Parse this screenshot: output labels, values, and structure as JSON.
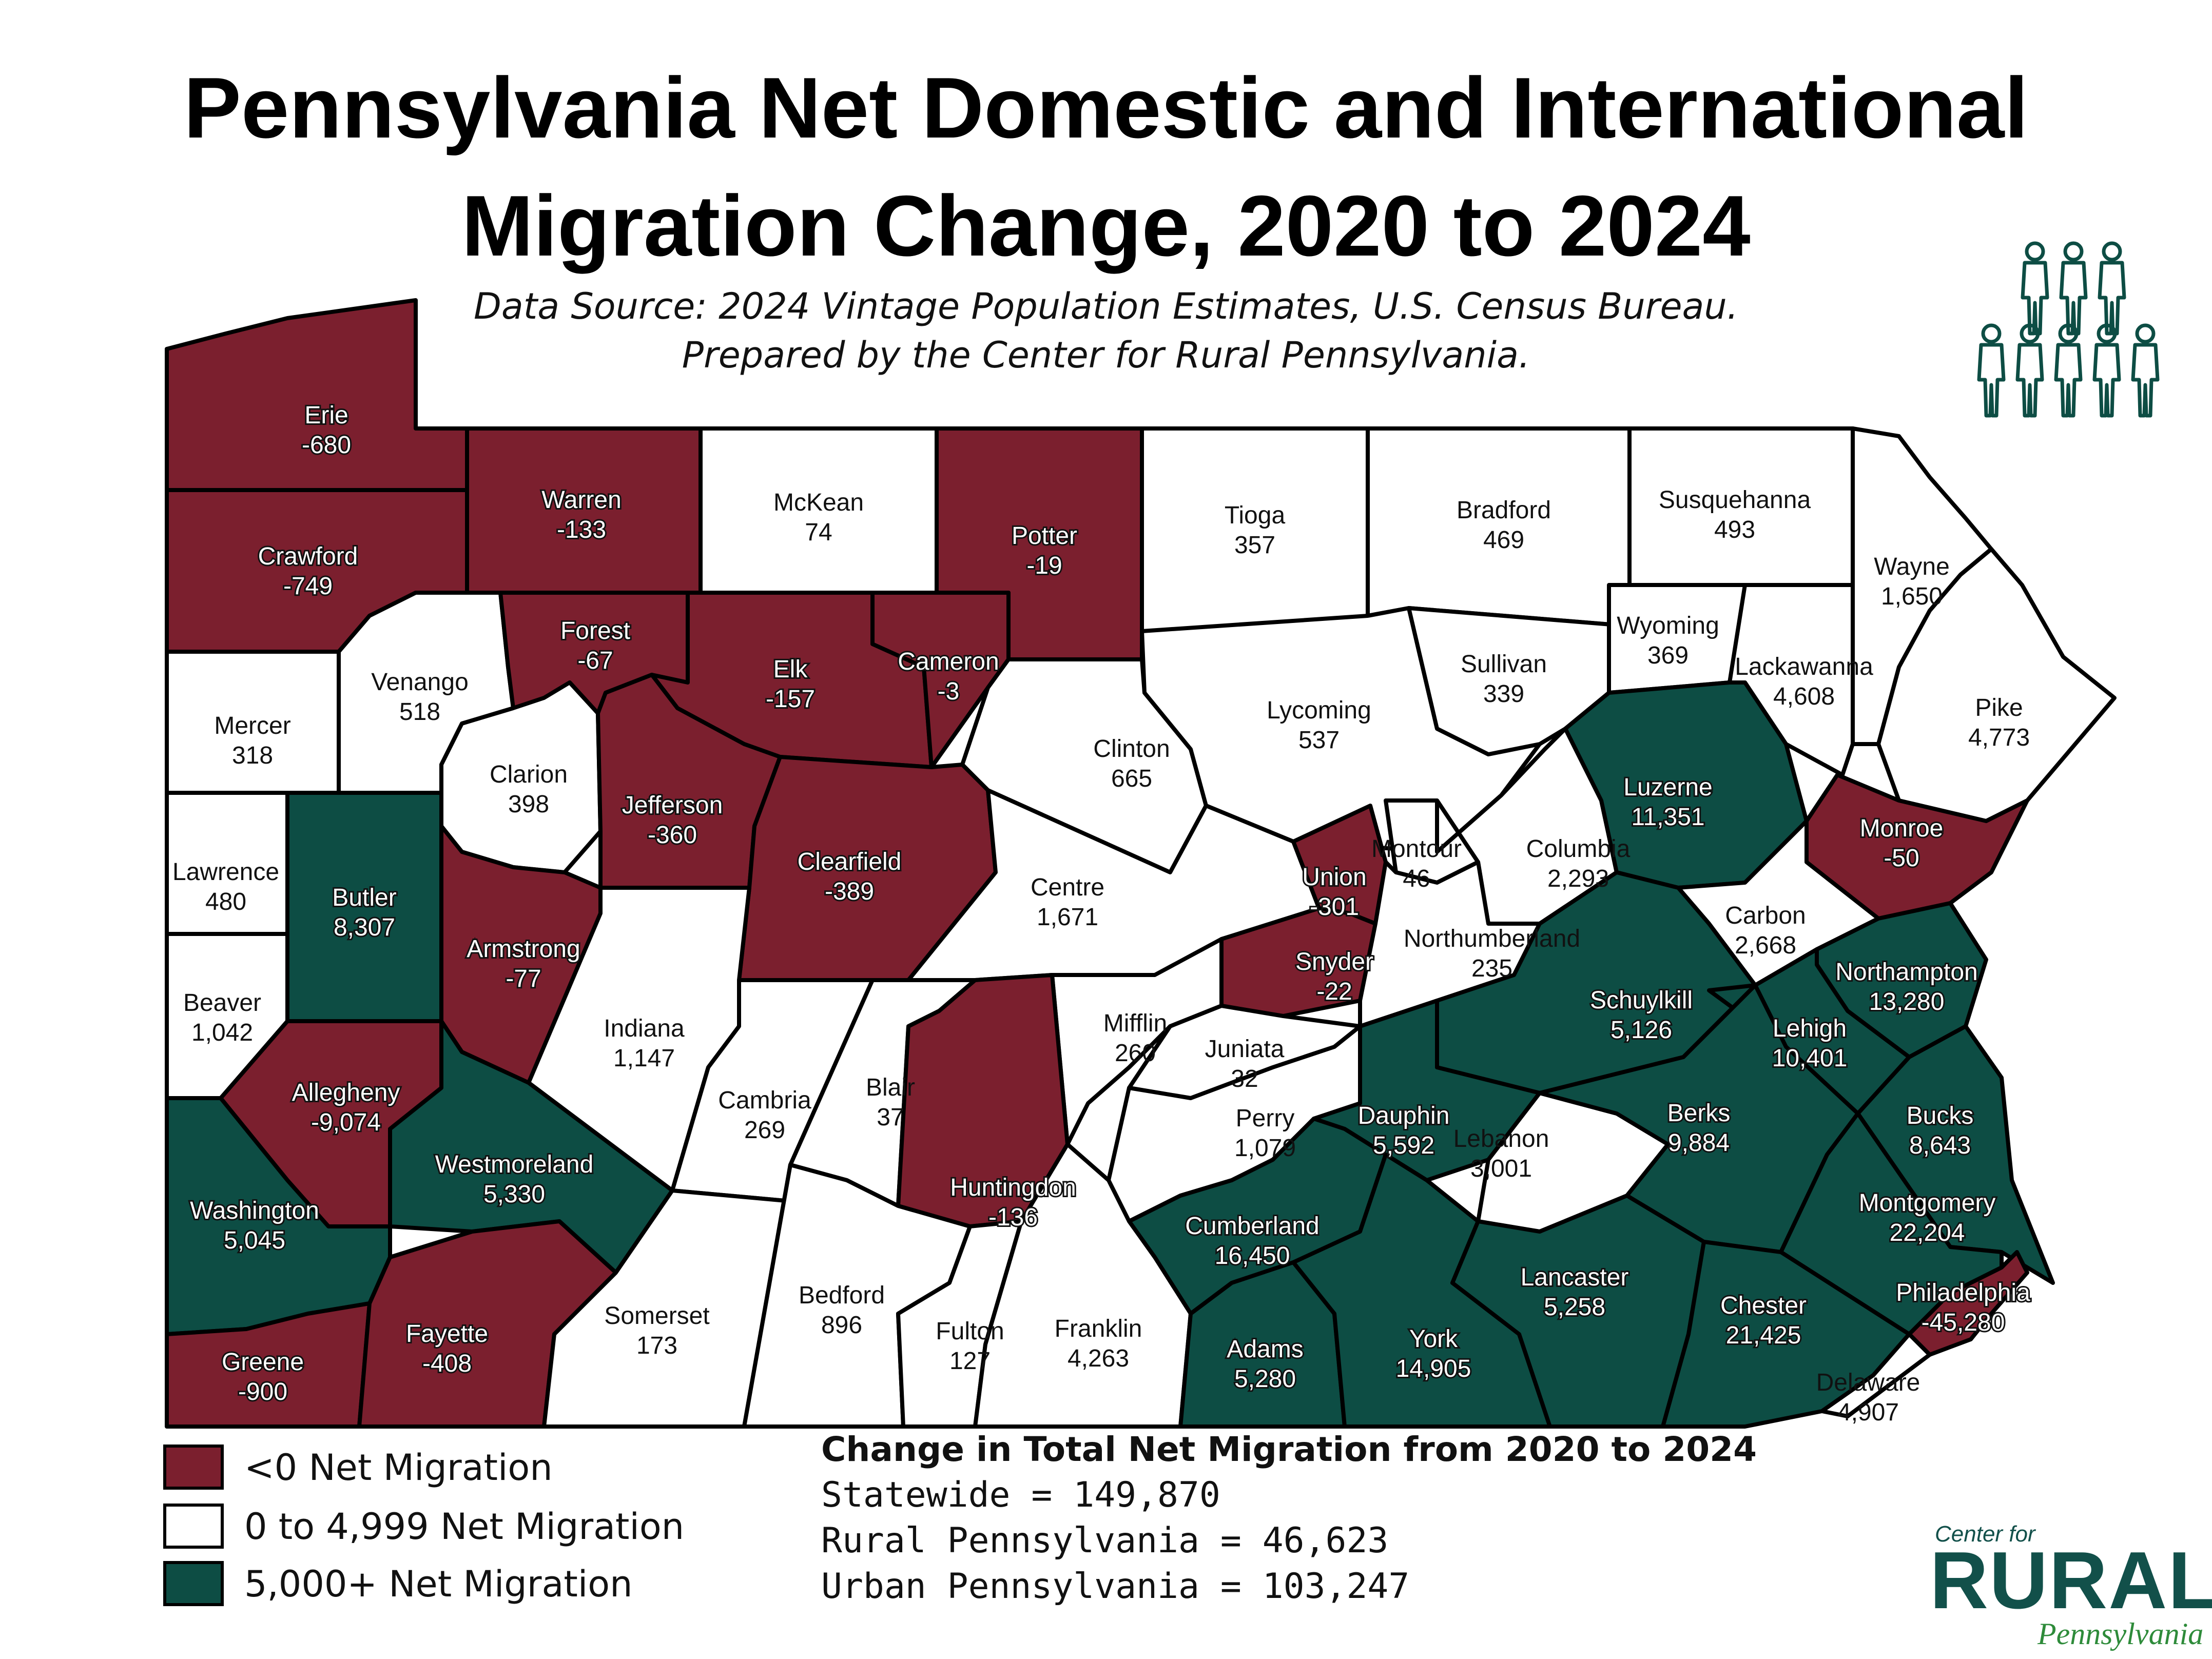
{
  "title_line1": "Pennsylvania Net Domestic and International",
  "title_line2": "Migration Change, 2020 to 2024",
  "source_line1": "Data Source: 2024 Vintage Population Estimates, U.S. Census Bureau.",
  "source_line2": "Prepared by the Center for Rural Pennsylvania.",
  "colors": {
    "negative": "#7b1f2e",
    "low": "#ffffff",
    "high": "#0d4d44",
    "border": "#000000",
    "people_icon": "#0d4d44"
  },
  "legend": [
    {
      "label": "<0 Net Migration",
      "color": "#7b1f2e"
    },
    {
      "label": "0 to 4,999 Net Migration",
      "color": "#ffffff"
    },
    {
      "label": "5,000+ Net Migration",
      "color": "#0d4d44"
    }
  ],
  "stats": {
    "heading": "Change in Total Net Migration from 2020 to 2024",
    "statewide": "Statewide = 149,870",
    "rural": "Rural Pennsylvania = 46,623",
    "urban": "Urban Pennsylvania = 103,247"
  },
  "logo": {
    "center_for": "Center for",
    "rural": "RURAL",
    "pennsylvania": "Pennsylvania"
  },
  "counties": [
    {
      "name": "Erie",
      "value": "-680",
      "category": "negative"
    },
    {
      "name": "Crawford",
      "value": "-749",
      "category": "negative"
    },
    {
      "name": "Warren",
      "value": "-133",
      "category": "negative"
    },
    {
      "name": "McKean",
      "value": "74",
      "category": "low"
    },
    {
      "name": "Potter",
      "value": "-19",
      "category": "negative"
    },
    {
      "name": "Tioga",
      "value": "357",
      "category": "low"
    },
    {
      "name": "Bradford",
      "value": "469",
      "category": "low"
    },
    {
      "name": "Susquehanna",
      "value": "493",
      "category": "low"
    },
    {
      "name": "Wayne",
      "value": "1,650",
      "category": "low"
    },
    {
      "name": "Mercer",
      "value": "318",
      "category": "low"
    },
    {
      "name": "Venango",
      "value": "518",
      "category": "low"
    },
    {
      "name": "Forest",
      "value": "-67",
      "category": "negative"
    },
    {
      "name": "Elk",
      "value": "-157",
      "category": "negative"
    },
    {
      "name": "Cameron",
      "value": "-3",
      "category": "negative"
    },
    {
      "name": "Clinton",
      "value": "665",
      "category": "low"
    },
    {
      "name": "Lycoming",
      "value": "537",
      "category": "low"
    },
    {
      "name": "Sullivan",
      "value": "339",
      "category": "low"
    },
    {
      "name": "Wyoming",
      "value": "369",
      "category": "low"
    },
    {
      "name": "Lackawanna",
      "value": "4,608",
      "category": "low"
    },
    {
      "name": "Pike",
      "value": "4,773",
      "category": "low"
    },
    {
      "name": "Lawrence",
      "value": "480",
      "category": "low"
    },
    {
      "name": "Butler",
      "value": "8,307",
      "category": "high"
    },
    {
      "name": "Clarion",
      "value": "398",
      "category": "low"
    },
    {
      "name": "Jefferson",
      "value": "-360",
      "category": "negative"
    },
    {
      "name": "Clearfield",
      "value": "-389",
      "category": "negative"
    },
    {
      "name": "Centre",
      "value": "1,671",
      "category": "low"
    },
    {
      "name": "Union",
      "value": "-301",
      "category": "negative"
    },
    {
      "name": "Montour",
      "value": "46",
      "category": "low"
    },
    {
      "name": "Columbia",
      "value": "2,293",
      "category": "low"
    },
    {
      "name": "Luzerne",
      "value": "11,351",
      "category": "high"
    },
    {
      "name": "Monroe",
      "value": "-50",
      "category": "negative"
    },
    {
      "name": "Carbon",
      "value": "2,668",
      "category": "low"
    },
    {
      "name": "Beaver",
      "value": "1,042",
      "category": "low"
    },
    {
      "name": "Armstrong",
      "value": "-77",
      "category": "negative"
    },
    {
      "name": "Indiana",
      "value": "1,147",
      "category": "low"
    },
    {
      "name": "Snyder",
      "value": "-22",
      "category": "negative"
    },
    {
      "name": "Northumberland",
      "value": "235",
      "category": "low"
    },
    {
      "name": "Schuylkill",
      "value": "5,126",
      "category": "high"
    },
    {
      "name": "Northampton",
      "value": "13,280",
      "category": "high"
    },
    {
      "name": "Lehigh",
      "value": "10,401",
      "category": "high"
    },
    {
      "name": "Allegheny",
      "value": "-9,074",
      "category": "negative"
    },
    {
      "name": "Westmoreland",
      "value": "5,330",
      "category": "high"
    },
    {
      "name": "Cambria",
      "value": "269",
      "category": "low"
    },
    {
      "name": "Blair",
      "value": "37",
      "category": "low"
    },
    {
      "name": "Mifflin",
      "value": "260",
      "category": "low"
    },
    {
      "name": "Juniata",
      "value": "32",
      "category": "low"
    },
    {
      "name": "Perry",
      "value": "1,079",
      "category": "low"
    },
    {
      "name": "Dauphin",
      "value": "5,592",
      "category": "high"
    },
    {
      "name": "Lebanon",
      "value": "3,001",
      "category": "low"
    },
    {
      "name": "Berks",
      "value": "9,884",
      "category": "high"
    },
    {
      "name": "Bucks",
      "value": "8,643",
      "category": "high"
    },
    {
      "name": "Washington",
      "value": "5,045",
      "category": "high"
    },
    {
      "name": "Huntingdon",
      "value": "-136",
      "category": "negative"
    },
    {
      "name": "Cumberland",
      "value": "16,450",
      "category": "high"
    },
    {
      "name": "Montgomery",
      "value": "22,204",
      "category": "high"
    },
    {
      "name": "Greene",
      "value": "-900",
      "category": "negative"
    },
    {
      "name": "Fayette",
      "value": "-408",
      "category": "negative"
    },
    {
      "name": "Somerset",
      "value": "173",
      "category": "low"
    },
    {
      "name": "Bedford",
      "value": "896",
      "category": "low"
    },
    {
      "name": "Fulton",
      "value": "127",
      "category": "low"
    },
    {
      "name": "Franklin",
      "value": "4,263",
      "category": "low"
    },
    {
      "name": "Adams",
      "value": "5,280",
      "category": "high"
    },
    {
      "name": "York",
      "value": "14,905",
      "category": "high"
    },
    {
      "name": "Lancaster",
      "value": "5,258",
      "category": "high"
    },
    {
      "name": "Chester",
      "value": "21,425",
      "category": "high"
    },
    {
      "name": "Philadelphia",
      "value": "-45,280",
      "category": "negative"
    },
    {
      "name": "Delaware",
      "value": "4,907",
      "category": "low"
    }
  ]
}
